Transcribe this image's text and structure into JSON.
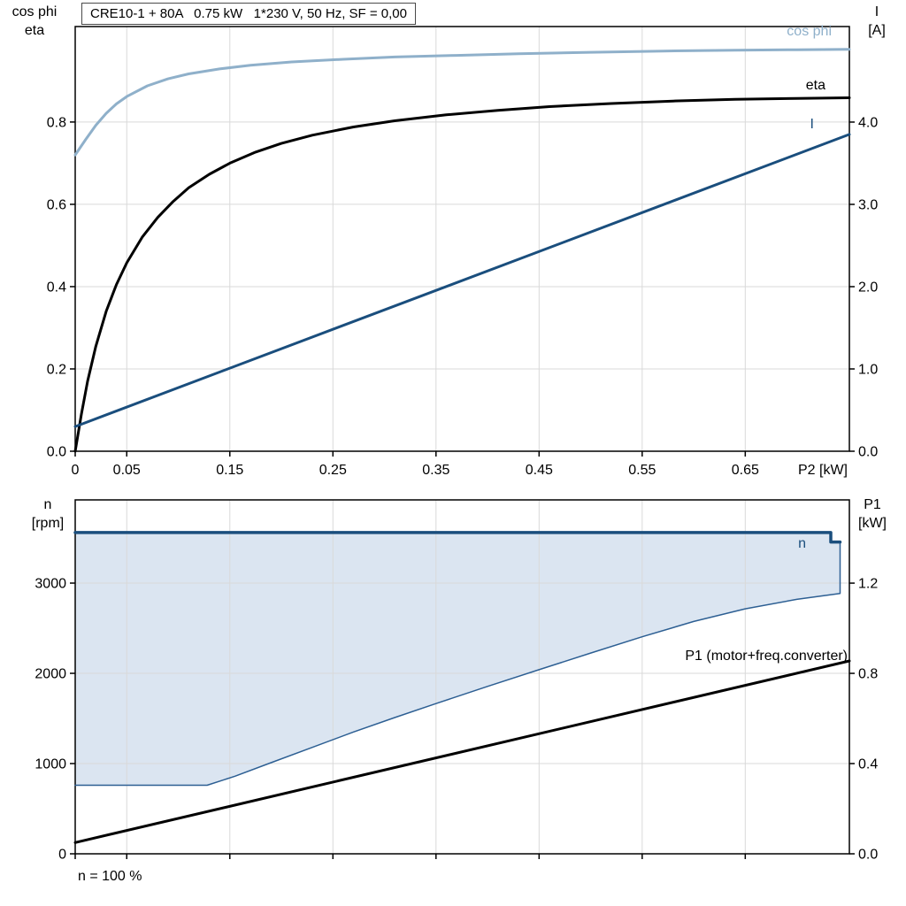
{
  "page": {
    "footer": "n = 100 %"
  },
  "colors": {
    "cos_phi_blue": "#8fb0ca",
    "dark_blue": "#1a4e7d",
    "black": "#000000",
    "region_fill": "#dbe5f1",
    "grid": "#d9d9d9"
  },
  "charts": {
    "top": {
      "type": "line",
      "title": "CRE10-1 + 80A   0.75 kW   1*230 V, 50 Hz, SF = 0,00",
      "axis_left_label": [
        "cos phi",
        "eta"
      ],
      "axis_right_label": [
        "I",
        "[A]"
      ],
      "xlabel": "P2 [kW]",
      "xlim": [
        0,
        0.751
      ],
      "x_ticks": [
        {
          "v": 0,
          "label": "0"
        },
        {
          "v": 0.05,
          "label": "0.05"
        },
        {
          "v": 0.15,
          "label": "0.15"
        },
        {
          "v": 0.25,
          "label": "0.25"
        },
        {
          "v": 0.35,
          "label": "0.35"
        },
        {
          "v": 0.45,
          "label": "0.45"
        },
        {
          "v": 0.55,
          "label": "0.55"
        },
        {
          "v": 0.65,
          "label": "0.65"
        }
      ],
      "left_axis": {
        "lim": [
          0,
          1.032
        ],
        "ticks": [
          {
            "v": 0.0,
            "label": "0.0"
          },
          {
            "v": 0.2,
            "label": "0.2"
          },
          {
            "v": 0.4,
            "label": "0.4"
          },
          {
            "v": 0.6,
            "label": "0.6"
          },
          {
            "v": 0.8,
            "label": "0.8"
          }
        ]
      },
      "right_axis": {
        "lim": [
          0,
          5.161
        ],
        "ticks": [
          {
            "v": 0.0,
            "label": "0.0"
          },
          {
            "v": 1.0,
            "label": "1.0"
          },
          {
            "v": 2.0,
            "label": "2.0"
          },
          {
            "v": 3.0,
            "label": "3.0"
          },
          {
            "v": 4.0,
            "label": "4.0"
          }
        ]
      },
      "series": [
        {
          "name": "cos phi",
          "axis": "left",
          "color": "#8fb0ca",
          "width": 3,
          "points": [
            [
              0,
              0.72
            ],
            [
              0.01,
              0.757
            ],
            [
              0.02,
              0.792
            ],
            [
              0.03,
              0.821
            ],
            [
              0.04,
              0.844
            ],
            [
              0.05,
              0.862
            ],
            [
              0.07,
              0.888
            ],
            [
              0.09,
              0.905
            ],
            [
              0.11,
              0.917
            ],
            [
              0.14,
              0.929
            ],
            [
              0.17,
              0.938
            ],
            [
              0.21,
              0.946
            ],
            [
              0.26,
              0.9525
            ],
            [
              0.31,
              0.958
            ],
            [
              0.37,
              0.962
            ],
            [
              0.43,
              0.966
            ],
            [
              0.5,
              0.9695
            ],
            [
              0.57,
              0.9725
            ],
            [
              0.64,
              0.9745
            ],
            [
              0.7,
              0.9757
            ],
            [
              0.751,
              0.9765
            ]
          ]
        },
        {
          "name": "eta",
          "axis": "left",
          "color": "#000000",
          "width": 3,
          "points": [
            [
              0,
              0
            ],
            [
              0.006,
              0.09
            ],
            [
              0.012,
              0.17
            ],
            [
              0.02,
              0.255
            ],
            [
              0.03,
              0.34
            ],
            [
              0.04,
              0.405
            ],
            [
              0.05,
              0.458
            ],
            [
              0.065,
              0.52
            ],
            [
              0.08,
              0.568
            ],
            [
              0.095,
              0.607
            ],
            [
              0.11,
              0.64
            ],
            [
              0.13,
              0.673
            ],
            [
              0.15,
              0.7
            ],
            [
              0.175,
              0.727
            ],
            [
              0.2,
              0.748
            ],
            [
              0.23,
              0.768
            ],
            [
              0.27,
              0.788
            ],
            [
              0.31,
              0.803
            ],
            [
              0.36,
              0.8175
            ],
            [
              0.41,
              0.8285
            ],
            [
              0.46,
              0.8375
            ],
            [
              0.52,
              0.845
            ],
            [
              0.58,
              0.851
            ],
            [
              0.64,
              0.855
            ],
            [
              0.7,
              0.8575
            ],
            [
              0.751,
              0.859
            ]
          ]
        },
        {
          "name": "I",
          "axis": "right",
          "color": "#1a4e7d",
          "width": 3,
          "points": [
            [
              0,
              0.3
            ],
            [
              0.751,
              3.85
            ]
          ]
        }
      ],
      "curve_labels": [
        {
          "text": "cos phi"
        },
        {
          "text": "eta"
        },
        {
          "text": "I"
        }
      ]
    },
    "bottom": {
      "type": "line",
      "axis_left_label": [
        "n",
        "[rpm]"
      ],
      "axis_right_label": [
        "P1",
        "[kW]"
      ],
      "xlabel": "",
      "xlim": [
        0,
        0.751
      ],
      "x_ticks": [
        {
          "v": 0,
          "label": ""
        },
        {
          "v": 0.05,
          "label": ""
        },
        {
          "v": 0.15,
          "label": ""
        },
        {
          "v": 0.25,
          "label": ""
        },
        {
          "v": 0.35,
          "label": ""
        },
        {
          "v": 0.45,
          "label": ""
        },
        {
          "v": 0.55,
          "label": ""
        },
        {
          "v": 0.65,
          "label": ""
        }
      ],
      "left_axis": {
        "lim": [
          0,
          3922
        ],
        "ticks": [
          {
            "v": 0,
            "label": "0"
          },
          {
            "v": 1000,
            "label": "1000"
          },
          {
            "v": 2000,
            "label": "2000"
          },
          {
            "v": 3000,
            "label": "3000"
          }
        ]
      },
      "right_axis": {
        "lim": [
          0,
          1.569
        ],
        "ticks": [
          {
            "v": 0.0,
            "label": "0.0"
          },
          {
            "v": 0.4,
            "label": "0.4"
          },
          {
            "v": 0.8,
            "label": "0.8"
          },
          {
            "v": 1.2,
            "label": "1.2"
          }
        ]
      },
      "region": {
        "color": "#dbe5f1",
        "points": [
          [
            0,
            760
          ],
          [
            0.128,
            760
          ],
          [
            0.155,
            860
          ],
          [
            0.19,
            1010
          ],
          [
            0.23,
            1180
          ],
          [
            0.27,
            1350
          ],
          [
            0.31,
            1510
          ],
          [
            0.35,
            1665
          ],
          [
            0.4,
            1855
          ],
          [
            0.45,
            2040
          ],
          [
            0.5,
            2225
          ],
          [
            0.55,
            2405
          ],
          [
            0.6,
            2575
          ],
          [
            0.65,
            2715
          ],
          [
            0.7,
            2820
          ],
          [
            0.742,
            2885
          ],
          [
            0.742,
            3455
          ],
          [
            0.733,
            3455
          ],
          [
            0.733,
            3560
          ],
          [
            0,
            3560
          ]
        ]
      },
      "series": [
        {
          "name": "n lower limit",
          "axis": "left",
          "color": "#2d5f93",
          "width": 1.5,
          "points": [
            [
              0,
              760
            ],
            [
              0.128,
              760
            ],
            [
              0.155,
              860
            ],
            [
              0.19,
              1010
            ],
            [
              0.23,
              1180
            ],
            [
              0.27,
              1350
            ],
            [
              0.31,
              1510
            ],
            [
              0.35,
              1665
            ],
            [
              0.4,
              1855
            ],
            [
              0.45,
              2040
            ],
            [
              0.5,
              2225
            ],
            [
              0.55,
              2405
            ],
            [
              0.6,
              2575
            ],
            [
              0.65,
              2715
            ],
            [
              0.7,
              2820
            ],
            [
              0.742,
              2885
            ],
            [
              0.742,
              3455
            ]
          ]
        },
        {
          "name": "n",
          "axis": "left",
          "color": "#1a4e7d",
          "width": 3.5,
          "points": [
            [
              0,
              3560
            ],
            [
              0.733,
              3560
            ],
            [
              0.733,
              3455
            ],
            [
              0.742,
              3455
            ]
          ]
        },
        {
          "name": "P1",
          "axis": "right",
          "color": "#000000",
          "width": 3,
          "points": [
            [
              0,
              0.05
            ],
            [
              0.751,
              0.855
            ]
          ]
        }
      ],
      "curve_labels": [
        {
          "text": "n"
        },
        {
          "text": "P1 (motor+freq.converter)"
        }
      ]
    }
  }
}
